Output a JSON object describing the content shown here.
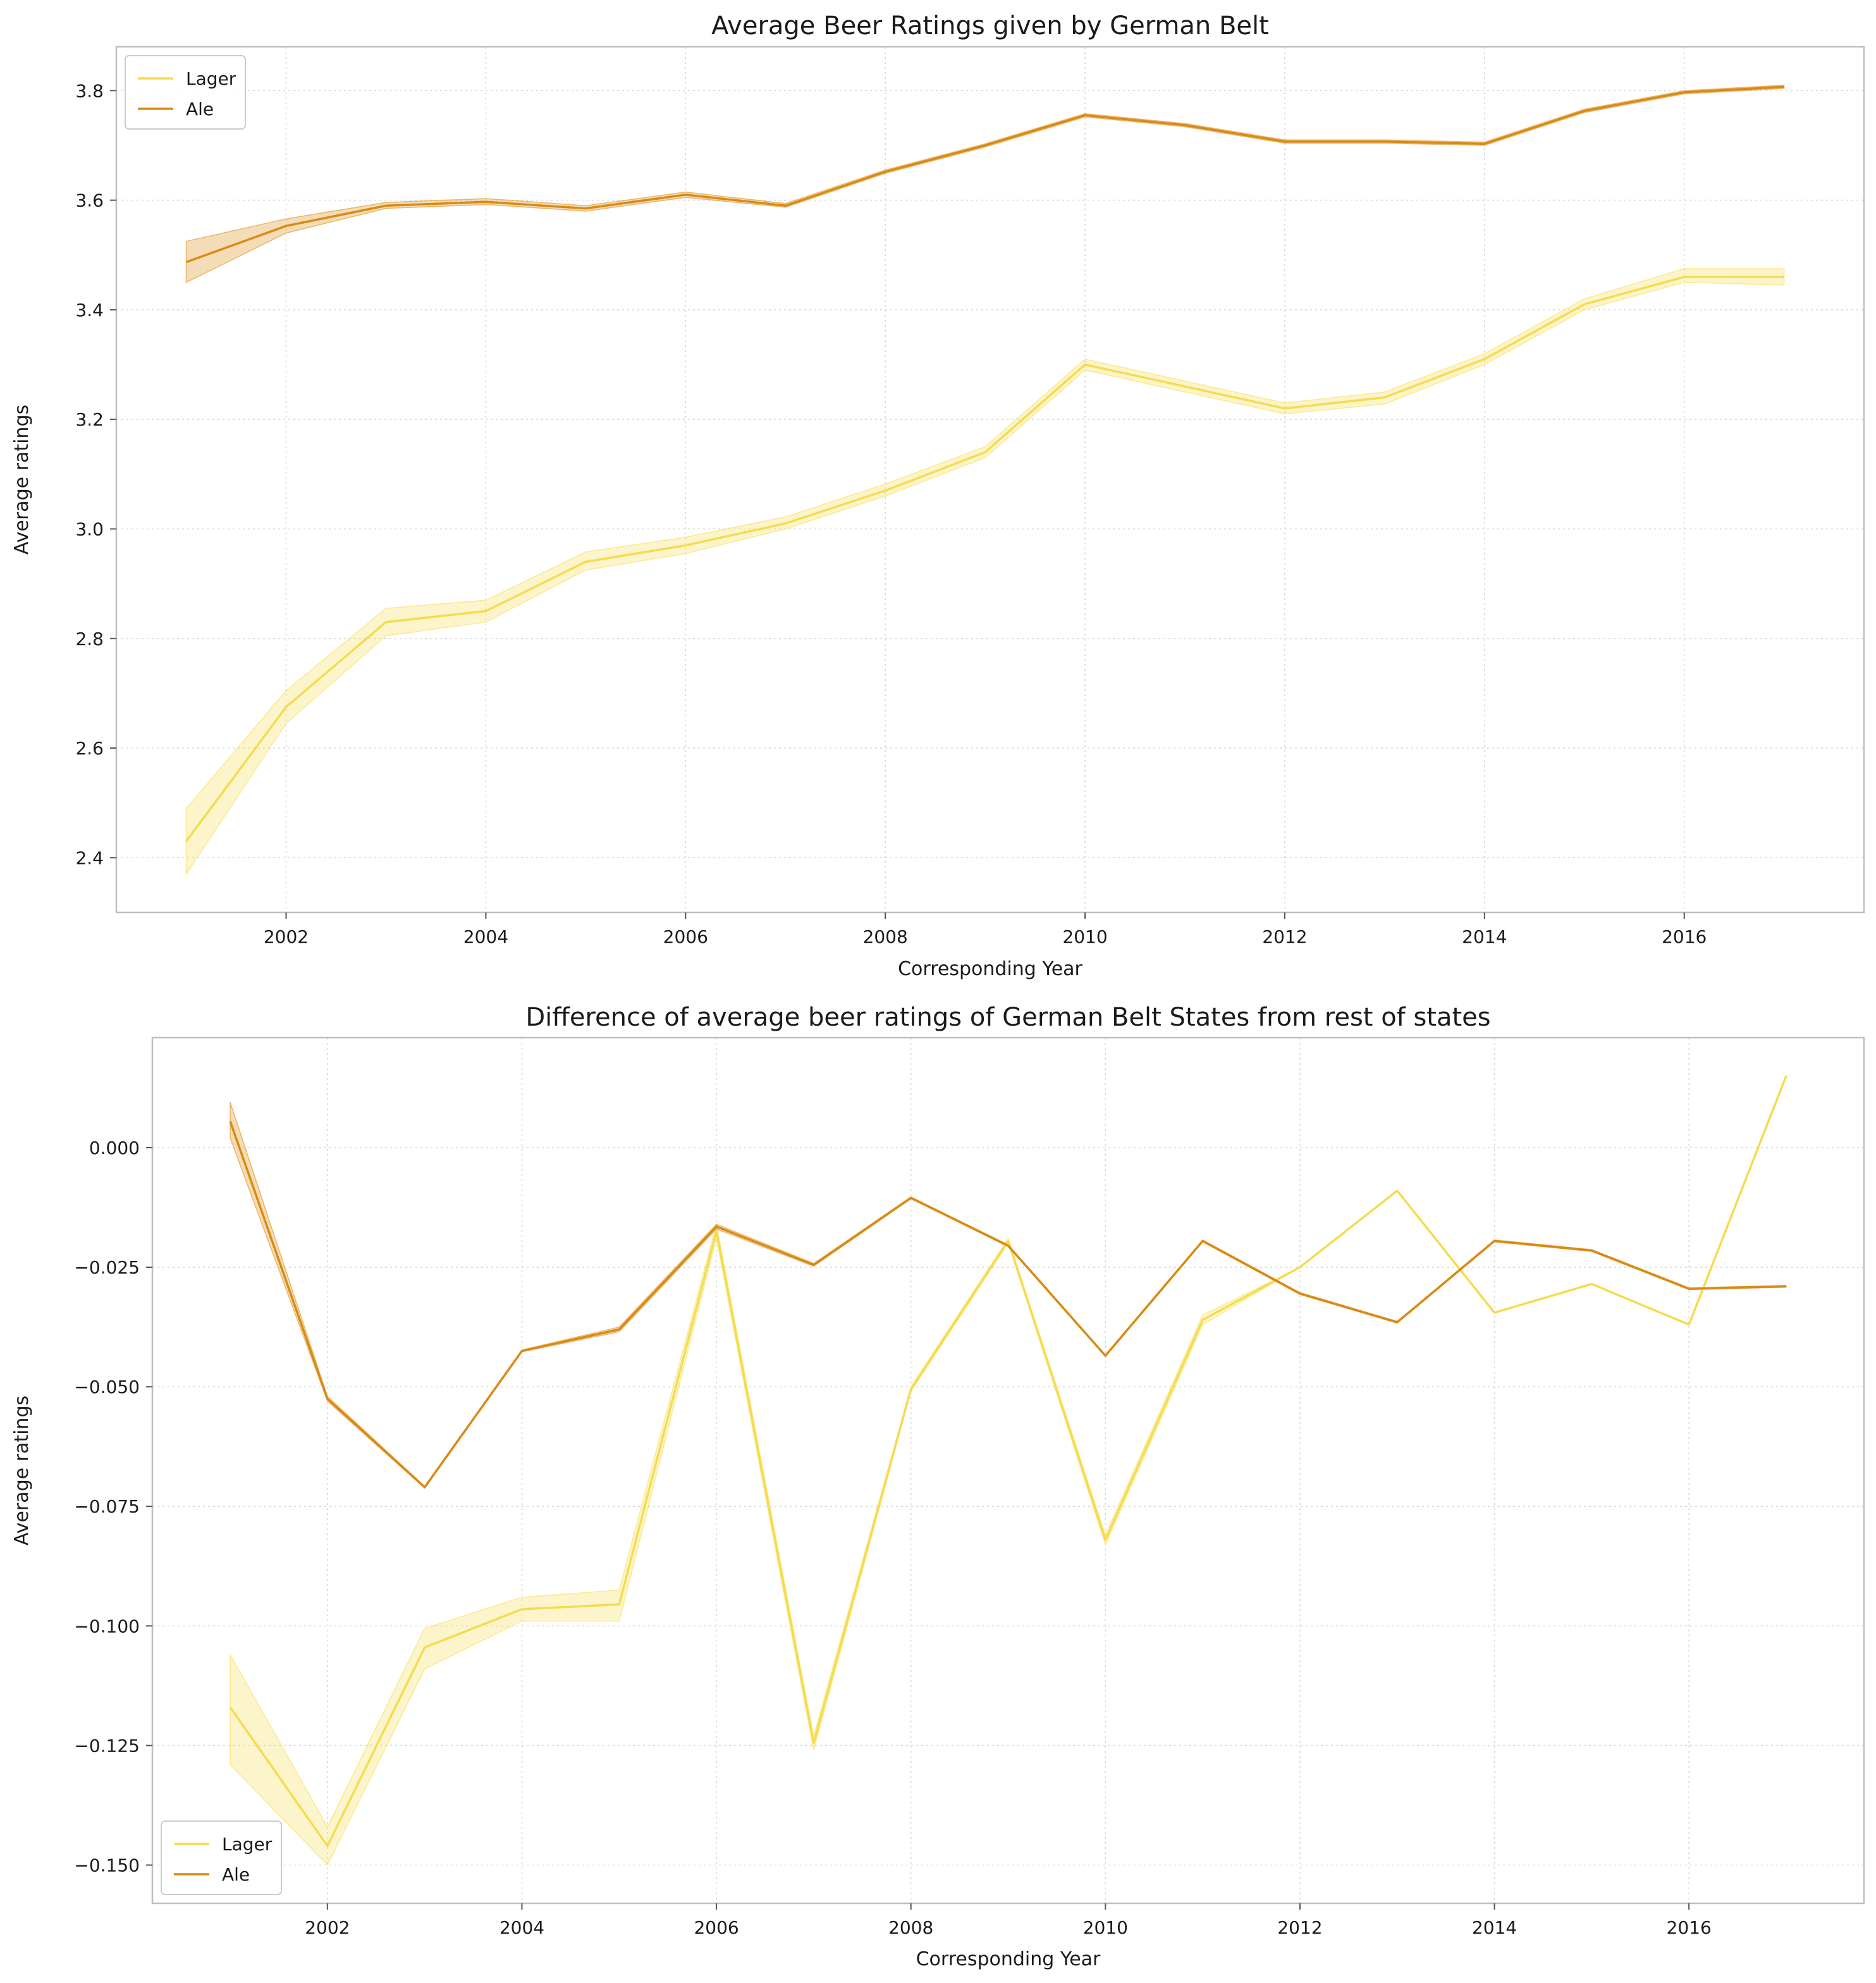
{
  "colors": {
    "lager": "#F5DC4F",
    "ale": "#DA8A12",
    "grid": "#d9d9d9",
    "frame": "#bfbfbf"
  },
  "chart_data": [
    {
      "type": "line",
      "title": "Average Beer Ratings given by German Belt",
      "xlabel": "Corresponding Year",
      "ylabel": "Average ratings",
      "xlim": [
        2000.3,
        2017.8
      ],
      "ylim": [
        2.3,
        3.88
      ],
      "xticks": [
        2002,
        2004,
        2006,
        2008,
        2010,
        2012,
        2014,
        2016
      ],
      "yticks": [
        2.4,
        2.6,
        2.8,
        3.0,
        3.2,
        3.4,
        3.6,
        3.8
      ],
      "ytick_decimals": 1,
      "grid": true,
      "legend": "top-left",
      "x": [
        2001,
        2002,
        2003,
        2004,
        2005,
        2006,
        2007,
        2008,
        2009,
        2010,
        2011,
        2012,
        2013,
        2014,
        2015,
        2016,
        2017
      ],
      "series": [
        {
          "name": "Lager",
          "color_key": "lager",
          "values": [
            2.43,
            2.675,
            2.83,
            2.85,
            2.94,
            2.97,
            3.01,
            3.07,
            3.14,
            3.3,
            3.26,
            3.22,
            3.24,
            3.31,
            3.41,
            3.46,
            3.46
          ],
          "ci_low": [
            2.37,
            2.645,
            2.805,
            2.83,
            2.925,
            2.955,
            3.0,
            3.06,
            3.13,
            3.29,
            3.25,
            3.21,
            3.228,
            3.3,
            3.4,
            3.45,
            3.445
          ],
          "ci_high": [
            2.49,
            2.705,
            2.855,
            2.87,
            2.958,
            2.985,
            3.022,
            3.082,
            3.15,
            3.31,
            3.27,
            3.23,
            3.25,
            3.32,
            3.42,
            3.475,
            3.475
          ]
        },
        {
          "name": "Ale",
          "color_key": "ale",
          "values": [
            3.487,
            3.553,
            3.59,
            3.597,
            3.585,
            3.61,
            3.59,
            3.652,
            3.7,
            3.755,
            3.737,
            3.707,
            3.707,
            3.703,
            3.763,
            3.797,
            3.807
          ],
          "ci_low": [
            3.45,
            3.54,
            3.585,
            3.592,
            3.58,
            3.605,
            3.587,
            3.649,
            3.697,
            3.752,
            3.734,
            3.704,
            3.704,
            3.7,
            3.76,
            3.794,
            3.804
          ],
          "ci_high": [
            3.525,
            3.566,
            3.596,
            3.603,
            3.59,
            3.615,
            3.594,
            3.655,
            3.703,
            3.758,
            3.74,
            3.71,
            3.71,
            3.706,
            3.766,
            3.8,
            3.81
          ]
        }
      ]
    },
    {
      "type": "line",
      "title": "Difference of average beer ratings of German Belt States from rest of states",
      "xlabel": "Corresponding Year",
      "ylabel": "Average ratings",
      "xlim": [
        2000.2,
        2017.8
      ],
      "ylim": [
        -0.158,
        0.023
      ],
      "xticks": [
        2002,
        2004,
        2006,
        2008,
        2010,
        2012,
        2014,
        2016
      ],
      "yticks": [
        0.0,
        -0.025,
        -0.05,
        -0.075,
        -0.1,
        -0.125,
        -0.15
      ],
      "ytick_decimals": 3,
      "grid": true,
      "legend": "bottom-left",
      "x": [
        2001,
        2002,
        2003,
        2004,
        2005,
        2006,
        2007,
        2008,
        2009,
        2010,
        2011,
        2012,
        2013,
        2014,
        2015,
        2016,
        2017
      ],
      "series": [
        {
          "name": "Lager",
          "color_key": "lager",
          "values": [
            -0.117,
            -0.146,
            -0.1045,
            -0.0965,
            -0.0955,
            -0.0175,
            -0.1245,
            -0.0505,
            -0.0195,
            -0.082,
            -0.036,
            -0.025,
            -0.009,
            -0.0345,
            -0.0285,
            -0.037,
            0.015
          ],
          "ci_low": [
            -0.129,
            -0.15,
            -0.109,
            -0.099,
            -0.099,
            -0.019,
            -0.126,
            -0.051,
            -0.02,
            -0.083,
            -0.037,
            -0.025,
            -0.009,
            -0.0345,
            -0.0285,
            -0.037,
            0.015
          ],
          "ci_high": [
            -0.106,
            -0.142,
            -0.1005,
            -0.094,
            -0.0925,
            -0.016,
            -0.123,
            -0.05,
            -0.019,
            -0.081,
            -0.035,
            -0.025,
            -0.009,
            -0.0345,
            -0.0285,
            -0.037,
            0.015
          ]
        },
        {
          "name": "Ale",
          "color_key": "ale",
          "values": [
            0.0055,
            -0.0525,
            -0.071,
            -0.0425,
            -0.038,
            -0.0165,
            -0.0245,
            -0.0105,
            -0.0205,
            -0.0435,
            -0.0195,
            -0.0305,
            -0.0365,
            -0.0195,
            -0.0215,
            -0.0295,
            -0.029
          ],
          "ci_low": [
            0.002,
            -0.053,
            -0.0712,
            -0.0427,
            -0.0385,
            -0.017,
            -0.0248,
            -0.0107,
            -0.0207,
            -0.0437,
            -0.0197,
            -0.0307,
            -0.0367,
            -0.0197,
            -0.0217,
            -0.0297,
            -0.0292
          ],
          "ci_high": [
            0.0095,
            -0.052,
            -0.0708,
            -0.0423,
            -0.0375,
            -0.016,
            -0.0242,
            -0.0103,
            -0.0203,
            -0.0433,
            -0.0193,
            -0.0303,
            -0.0363,
            -0.0193,
            -0.0213,
            -0.0293,
            -0.0288
          ]
        }
      ]
    }
  ]
}
